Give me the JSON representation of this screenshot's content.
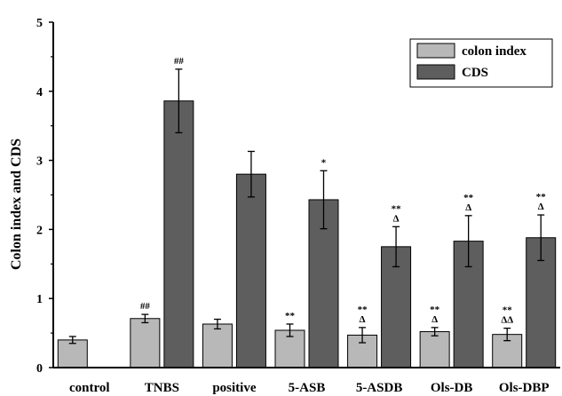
{
  "chart_data": {
    "type": "bar",
    "ylabel": "Colon index and CDS",
    "ylim": [
      0,
      5
    ],
    "yticks": [
      "0",
      "1",
      "2",
      "3",
      "4",
      "5"
    ],
    "legend_position": "top-right",
    "categories": [
      "control",
      "TNBS",
      "positive",
      "5-ASB",
      "5-ASDB",
      "Ols-DB",
      "Ols-DBP"
    ],
    "series": [
      {
        "name": "colon index",
        "color": "#b8b8b8",
        "values": [
          0.4,
          0.71,
          0.63,
          0.54,
          0.47,
          0.52,
          0.48
        ],
        "errors": [
          0.05,
          0.06,
          0.07,
          0.09,
          0.11,
          0.06,
          0.09
        ],
        "annotations": [
          [],
          [
            "##"
          ],
          [],
          [
            "**"
          ],
          [
            "**",
            "Δ"
          ],
          [
            "**",
            "Δ"
          ],
          [
            "**",
            "ΔΔ"
          ]
        ]
      },
      {
        "name": "CDS",
        "color": "#5e5e5e",
        "values": [
          null,
          3.86,
          2.8,
          2.43,
          1.75,
          1.83,
          1.88
        ],
        "errors": [
          null,
          0.46,
          0.33,
          0.42,
          0.29,
          0.37,
          0.33
        ],
        "annotations": [
          [],
          [
            "##"
          ],
          [],
          [
            "*"
          ],
          [
            "**",
            "Δ"
          ],
          [
            "**",
            "Δ"
          ],
          [
            "**",
            "Δ"
          ]
        ]
      }
    ]
  }
}
